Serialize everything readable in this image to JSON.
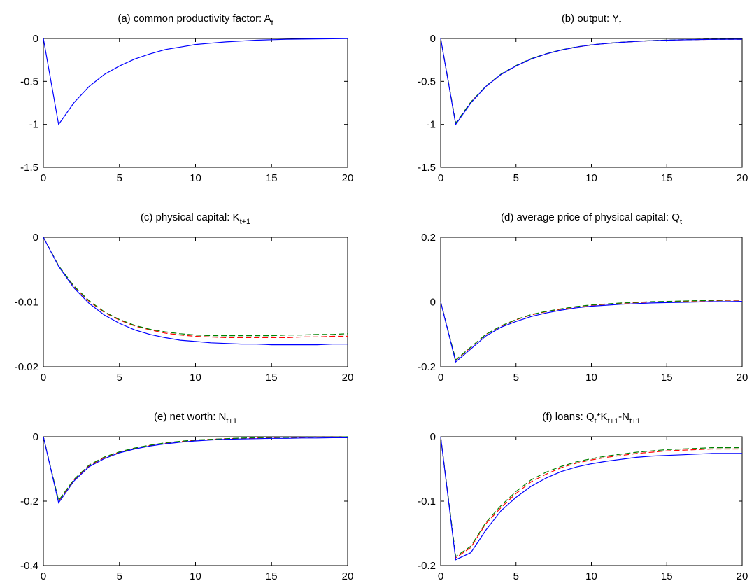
{
  "figure": {
    "colors": {
      "solid": "#0000ff",
      "dash_red": "#ff0000",
      "dash_green": "#008000"
    }
  },
  "chart_data": [
    {
      "type": "line",
      "title": {
        "prefix": "(a) common productivity factor: ",
        "base": "A",
        "sub": "t"
      },
      "xlim": [
        0,
        20
      ],
      "ylim": [
        -1.5,
        0
      ],
      "xticks": [
        0,
        5,
        10,
        15,
        20
      ],
      "yticks": [
        0,
        -0.5,
        -1,
        -1.5
      ],
      "ytick_labels": [
        "0",
        "-0.5",
        "-1",
        "-1.5"
      ],
      "x": [
        0,
        1,
        2,
        3,
        4,
        5,
        6,
        7,
        8,
        9,
        10,
        11,
        12,
        13,
        14,
        15,
        16,
        17,
        18,
        19,
        20
      ],
      "series": [
        {
          "style": "solid",
          "color": "#0000ff",
          "values": [
            0,
            -1.0,
            -0.75,
            -0.56,
            -0.42,
            -0.32,
            -0.24,
            -0.18,
            -0.13,
            -0.1,
            -0.07,
            -0.055,
            -0.04,
            -0.03,
            -0.02,
            -0.015,
            -0.01,
            -0.007,
            -0.005,
            -0.003,
            -0.002
          ]
        }
      ]
    },
    {
      "type": "line",
      "title": {
        "prefix": "(b) output: ",
        "base": "Y",
        "sub": "t"
      },
      "xlim": [
        0,
        20
      ],
      "ylim": [
        -1.5,
        0
      ],
      "xticks": [
        0,
        5,
        10,
        15,
        20
      ],
      "yticks": [
        0,
        -0.5,
        -1,
        -1.5
      ],
      "ytick_labels": [
        "0",
        "-0.5",
        "-1",
        "-1.5"
      ],
      "x": [
        0,
        1,
        2,
        3,
        4,
        5,
        6,
        7,
        8,
        9,
        10,
        11,
        12,
        13,
        14,
        15,
        16,
        17,
        18,
        19,
        20
      ],
      "series": [
        {
          "style": "dash",
          "color": "#ff0000",
          "values": [
            0,
            -0.99,
            -0.74,
            -0.56,
            -0.42,
            -0.32,
            -0.24,
            -0.18,
            -0.135,
            -0.1,
            -0.075,
            -0.058,
            -0.045,
            -0.034,
            -0.026,
            -0.02,
            -0.016,
            -0.013,
            -0.011,
            -0.01,
            -0.009
          ]
        },
        {
          "style": "dash",
          "color": "#008000",
          "values": [
            0,
            -0.985,
            -0.74,
            -0.555,
            -0.415,
            -0.315,
            -0.235,
            -0.178,
            -0.133,
            -0.099,
            -0.074,
            -0.057,
            -0.044,
            -0.033,
            -0.025,
            -0.019,
            -0.015,
            -0.012,
            -0.01,
            -0.009,
            -0.008
          ]
        },
        {
          "style": "solid",
          "color": "#0000ff",
          "values": [
            0,
            -1.0,
            -0.75,
            -0.56,
            -0.42,
            -0.32,
            -0.24,
            -0.18,
            -0.135,
            -0.1,
            -0.075,
            -0.058,
            -0.045,
            -0.034,
            -0.026,
            -0.02,
            -0.016,
            -0.013,
            -0.011,
            -0.01,
            -0.009
          ]
        }
      ]
    },
    {
      "type": "line",
      "title": {
        "prefix": "(c) physical capital: ",
        "base": "K",
        "sub": "t+1"
      },
      "xlim": [
        0,
        20
      ],
      "ylim": [
        -0.02,
        0
      ],
      "xticks": [
        0,
        5,
        10,
        15,
        20
      ],
      "yticks": [
        0,
        -0.01,
        -0.02
      ],
      "ytick_labels": [
        "0",
        "-0.01",
        "-0.02"
      ],
      "x": [
        0,
        1,
        2,
        3,
        4,
        5,
        6,
        7,
        8,
        9,
        10,
        11,
        12,
        13,
        14,
        15,
        16,
        17,
        18,
        19,
        20
      ],
      "series": [
        {
          "style": "dash",
          "color": "#ff0000",
          "values": [
            0,
            -0.0044,
            -0.0076,
            -0.0099,
            -0.0116,
            -0.0128,
            -0.0137,
            -0.0143,
            -0.0148,
            -0.0151,
            -0.0153,
            -0.0154,
            -0.0155,
            -0.0155,
            -0.0155,
            -0.0155,
            -0.0155,
            -0.0154,
            -0.0154,
            -0.0153,
            -0.0153
          ]
        },
        {
          "style": "dash",
          "color": "#008000",
          "values": [
            0,
            -0.0044,
            -0.0075,
            -0.0098,
            -0.0115,
            -0.0127,
            -0.0136,
            -0.0142,
            -0.0146,
            -0.0149,
            -0.0151,
            -0.0152,
            -0.0152,
            -0.0152,
            -0.0152,
            -0.0152,
            -0.0151,
            -0.0151,
            -0.015,
            -0.015,
            -0.0149
          ]
        },
        {
          "style": "solid",
          "color": "#0000ff",
          "values": [
            0,
            -0.0045,
            -0.0078,
            -0.0102,
            -0.012,
            -0.0133,
            -0.0143,
            -0.015,
            -0.0155,
            -0.0159,
            -0.0161,
            -0.0163,
            -0.0164,
            -0.0165,
            -0.0165,
            -0.0166,
            -0.0166,
            -0.0166,
            -0.0166,
            -0.0165,
            -0.0165
          ]
        }
      ]
    },
    {
      "type": "line",
      "title": {
        "prefix": "(d) average price of physical capital: ",
        "base": "Q",
        "sub": "t"
      },
      "xlim": [
        0,
        20
      ],
      "ylim": [
        -0.2,
        0.2
      ],
      "xticks": [
        0,
        5,
        10,
        15,
        20
      ],
      "yticks": [
        0.2,
        0,
        -0.2
      ],
      "ytick_labels": [
        "0.2",
        "0",
        "-0.2"
      ],
      "x": [
        0,
        1,
        2,
        3,
        4,
        5,
        6,
        7,
        8,
        9,
        10,
        11,
        12,
        13,
        14,
        15,
        16,
        17,
        18,
        19,
        20
      ],
      "series": [
        {
          "style": "dash",
          "color": "#ff0000",
          "values": [
            0,
            -0.18,
            -0.14,
            -0.1,
            -0.075,
            -0.055,
            -0.04,
            -0.03,
            -0.022,
            -0.015,
            -0.01,
            -0.007,
            -0.004,
            -0.002,
            0,
            0.001,
            0.002,
            0.003,
            0.004,
            0.005,
            0.005
          ]
        },
        {
          "style": "dash",
          "color": "#008000",
          "values": [
            0,
            -0.179,
            -0.139,
            -0.1,
            -0.074,
            -0.054,
            -0.039,
            -0.029,
            -0.021,
            -0.014,
            -0.009,
            -0.006,
            -0.003,
            -0.001,
            0.001,
            0.002,
            0.003,
            0.004,
            0.005,
            0.006,
            0.006
          ]
        },
        {
          "style": "solid",
          "color": "#0000ff",
          "values": [
            0,
            -0.185,
            -0.145,
            -0.105,
            -0.078,
            -0.06,
            -0.045,
            -0.034,
            -0.025,
            -0.018,
            -0.013,
            -0.01,
            -0.007,
            -0.005,
            -0.003,
            -0.002,
            -0.001,
            0,
            0.001,
            0.001,
            0.002
          ]
        }
      ]
    },
    {
      "type": "line",
      "title": {
        "prefix": "(e) net worth: ",
        "base": "N",
        "sub": "t+1"
      },
      "xlim": [
        0,
        20
      ],
      "ylim": [
        -0.4,
        0
      ],
      "xticks": [
        0,
        5,
        10,
        15,
        20
      ],
      "yticks": [
        0,
        -0.2,
        -0.4
      ],
      "ytick_labels": [
        "0",
        "-0.2",
        "-0.4"
      ],
      "x": [
        0,
        1,
        2,
        3,
        4,
        5,
        6,
        7,
        8,
        9,
        10,
        11,
        12,
        13,
        14,
        15,
        16,
        17,
        18,
        19,
        20
      ],
      "series": [
        {
          "style": "dash",
          "color": "#ff0000",
          "values": [
            0,
            -0.2,
            -0.135,
            -0.09,
            -0.065,
            -0.048,
            -0.036,
            -0.027,
            -0.02,
            -0.015,
            -0.011,
            -0.008,
            -0.006,
            -0.005,
            -0.004,
            -0.003,
            -0.002,
            -0.002,
            -0.001,
            -0.001,
            -0.001
          ]
        },
        {
          "style": "dash",
          "color": "#008000",
          "values": [
            0,
            -0.198,
            -0.133,
            -0.088,
            -0.063,
            -0.047,
            -0.035,
            -0.026,
            -0.019,
            -0.014,
            -0.01,
            -0.008,
            -0.006,
            -0.004,
            -0.003,
            -0.002,
            -0.002,
            -0.001,
            -0.001,
            -0.001,
            0
          ]
        },
        {
          "style": "solid",
          "color": "#0000ff",
          "values": [
            0,
            -0.205,
            -0.138,
            -0.093,
            -0.068,
            -0.05,
            -0.038,
            -0.029,
            -0.022,
            -0.017,
            -0.013,
            -0.01,
            -0.008,
            -0.007,
            -0.006,
            -0.005,
            -0.005,
            -0.004,
            -0.004,
            -0.003,
            -0.003
          ]
        }
      ]
    },
    {
      "type": "line",
      "title": {
        "prefix": "(f) loans: ",
        "parts": [
          {
            "base": "Q",
            "sub": "t"
          },
          {
            "base": "*K",
            "sub": "t+1"
          },
          {
            "base": "-N",
            "sub": "t+1"
          }
        ]
      },
      "xlim": [
        0,
        20
      ],
      "ylim": [
        -0.2,
        0
      ],
      "xticks": [
        0,
        5,
        10,
        15,
        20
      ],
      "yticks": [
        0,
        -0.1,
        -0.2
      ],
      "ytick_labels": [
        "0",
        "-0.1",
        "-0.2"
      ],
      "x": [
        0,
        1,
        2,
        3,
        4,
        5,
        6,
        7,
        8,
        9,
        10,
        11,
        12,
        13,
        14,
        15,
        16,
        17,
        18,
        19,
        20
      ],
      "series": [
        {
          "style": "dash",
          "color": "#ff0000",
          "values": [
            0,
            -0.188,
            -0.172,
            -0.135,
            -0.11,
            -0.088,
            -0.07,
            -0.058,
            -0.048,
            -0.041,
            -0.036,
            -0.032,
            -0.029,
            -0.026,
            -0.024,
            -0.022,
            -0.021,
            -0.02,
            -0.019,
            -0.019,
            -0.019
          ]
        },
        {
          "style": "dash",
          "color": "#008000",
          "values": [
            0,
            -0.186,
            -0.17,
            -0.133,
            -0.107,
            -0.085,
            -0.067,
            -0.055,
            -0.046,
            -0.039,
            -0.034,
            -0.03,
            -0.027,
            -0.024,
            -0.022,
            -0.02,
            -0.019,
            -0.018,
            -0.017,
            -0.017,
            -0.017
          ]
        },
        {
          "style": "solid",
          "color": "#0000ff",
          "values": [
            0,
            -0.191,
            -0.18,
            -0.145,
            -0.115,
            -0.094,
            -0.077,
            -0.064,
            -0.054,
            -0.047,
            -0.042,
            -0.038,
            -0.035,
            -0.032,
            -0.03,
            -0.029,
            -0.028,
            -0.027,
            -0.026,
            -0.026,
            -0.026
          ]
        }
      ]
    }
  ]
}
